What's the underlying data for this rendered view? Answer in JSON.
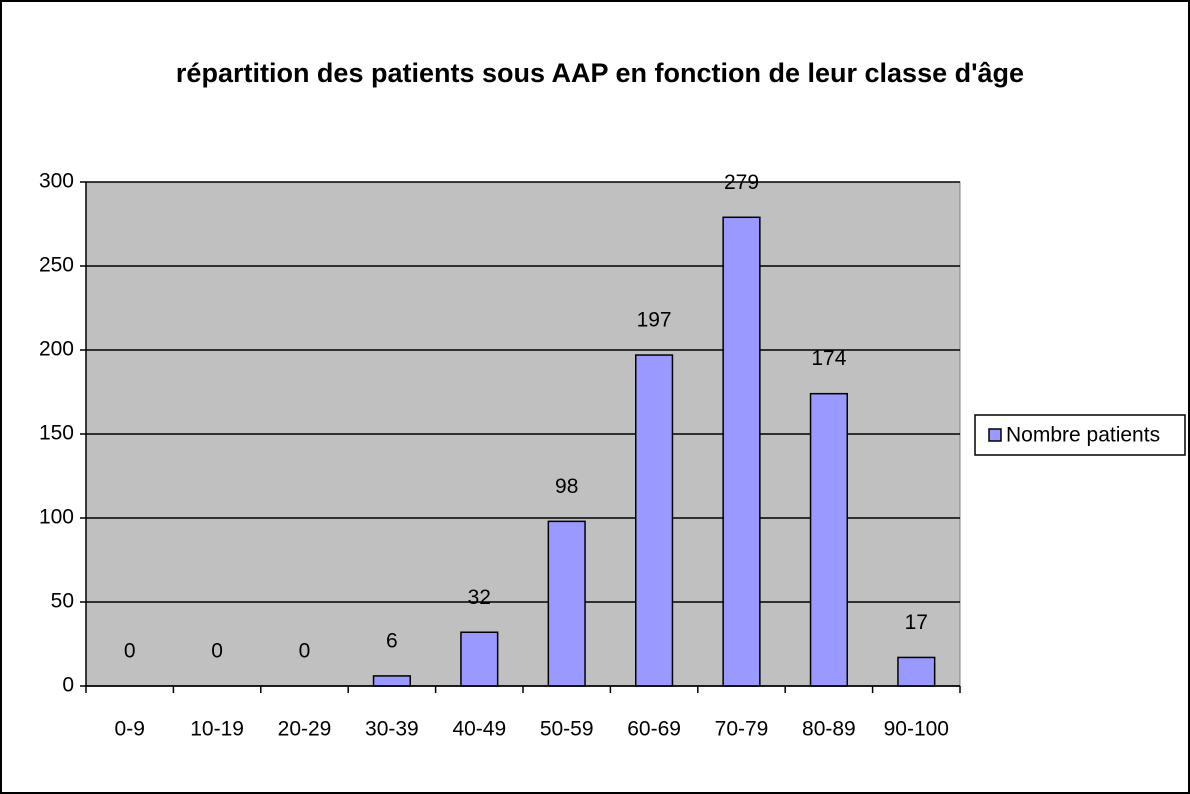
{
  "chart_data": {
    "type": "bar",
    "title": "répartition des patients sous AAP en fonction de leur classe d'âge",
    "categories": [
      "0-9",
      "10-19",
      "20-29",
      "30-39",
      "40-49",
      "50-59",
      "60-69",
      "70-79",
      "80-89",
      "90-100"
    ],
    "series": [
      {
        "name": "Nombre patients",
        "color": "#9999ff",
        "values": [
          0,
          0,
          0,
          6,
          32,
          98,
          197,
          279,
          174,
          17
        ]
      }
    ],
    "ylim": [
      0,
      300
    ],
    "yticks": [
      0,
      50,
      100,
      150,
      200,
      250,
      300
    ],
    "grid": true,
    "legend": "right"
  }
}
